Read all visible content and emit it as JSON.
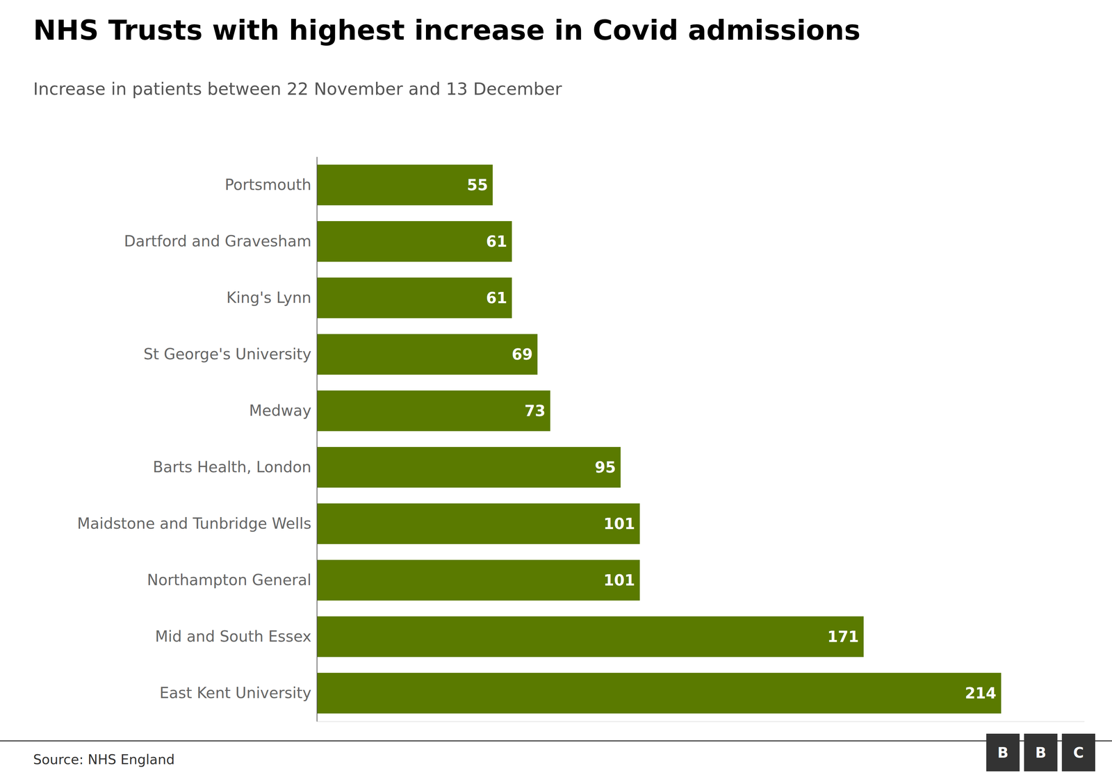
{
  "chart_data": {
    "type": "bar",
    "orientation": "horizontal",
    "title": "NHS Trusts with highest increase in Covid admissions",
    "subtitle": "Increase in patients between 22 November and 13 December",
    "source": "Source: NHS England",
    "logo": [
      "B",
      "B",
      "C"
    ],
    "categories": [
      "Portsmouth",
      "Dartford and Gravesham",
      "King's Lynn",
      "St George's University",
      "Medway",
      "Barts Health, London",
      "Maidstone and Tunbridge Wells",
      "Northampton General",
      "Mid and South Essex",
      "East Kent University"
    ],
    "values": [
      55,
      61,
      61,
      69,
      73,
      95,
      101,
      101,
      171,
      214
    ],
    "color": "#5a7a00",
    "xlim": [
      0,
      240
    ],
    "xticks": [],
    "grid": false,
    "data_labels": true,
    "tick_labels": "y"
  }
}
